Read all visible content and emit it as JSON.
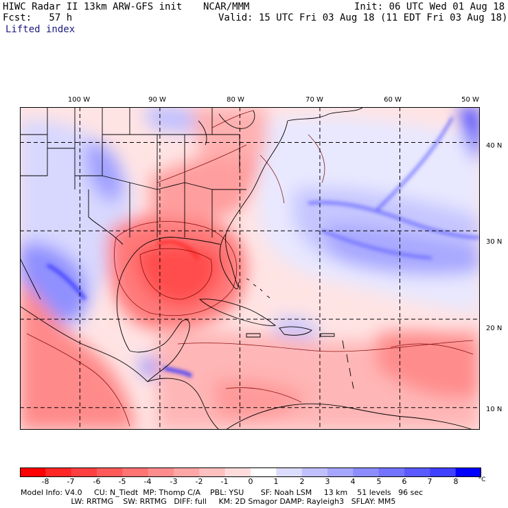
{
  "header": {
    "title": "HIWC Radar II 13km ARW-GFS init",
    "org": "NCAR/MMM",
    "init": "Init: 06 UTC Wed 01 Aug 18",
    "fcst": "Fcst:   57 h",
    "valid": "Valid: 15 UTC Fri 03 Aug 18 (11 EDT Fri 03 Aug 18)",
    "field": "Lifted index"
  },
  "map": {
    "lon_labels": [
      "100 W",
      "90 W",
      "80 W",
      "70 W",
      "60 W",
      "50 W"
    ],
    "lat_labels": [
      "40 N",
      "30 N",
      "20 N",
      "10 N"
    ],
    "grid_lons": [
      -100,
      -90,
      -80,
      -70,
      -60,
      -50
    ],
    "grid_lats": [
      40,
      30,
      20,
      10
    ],
    "lon_range": [
      -107.5,
      -50.0
    ],
    "lat_range": [
      7.5,
      44.0
    ],
    "colors": {
      "neg_strong": "#ff1a1a",
      "neg_light": "#ffe4e4",
      "zero": "#ffffff",
      "pos_light": "#e4e4ff",
      "pos_strong": "#1a1aff",
      "coast": "#000000",
      "contour": "#800000"
    }
  },
  "colorbar": {
    "labels": [
      "-8",
      "-7",
      "-6",
      "-5",
      "-4",
      "-3",
      "-2",
      "-1",
      "0",
      "1",
      "2",
      "3",
      "4",
      "5",
      "6",
      "7",
      "8"
    ],
    "unit": "°C",
    "levels": [
      -9,
      -8,
      -7,
      -6,
      -5,
      -4,
      -3,
      -2,
      -1,
      0,
      1,
      2,
      3,
      4,
      5,
      6,
      7,
      8,
      9
    ],
    "colors": [
      "#ff0000",
      "#ff2626",
      "#ff4040",
      "#ff5a5a",
      "#ff7373",
      "#ff8c8c",
      "#ffa6a6",
      "#ffc0c0",
      "#ffdcdc",
      "#ffffff",
      "#dcdcff",
      "#c0c0ff",
      "#a6a6ff",
      "#8c8cff",
      "#7373ff",
      "#5a5aff",
      "#4040ff",
      "#0000ff"
    ]
  },
  "footer": {
    "line1": "Model Info: V4.0     CU: N_Tiedt  MP: Thomp C/A    PBL: YSU       SF: Noah LSM     13 km    51 levels   96 sec",
    "line2": "                     LW: RRTMG    SW: RRTMG   DIFF: full     KM: 2D Smagor DAMP: Rayleigh3   SFLAY: MM5"
  }
}
